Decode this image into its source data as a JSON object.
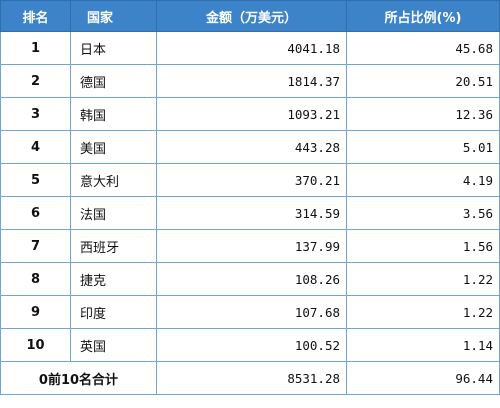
{
  "header": {
    "rank": "排名",
    "country": "国家",
    "amount": "金额（万美元）",
    "share": "所占比例(%)"
  },
  "rows": [
    {
      "rank": "1",
      "country": "日本",
      "amount": "4041.18",
      "share": "45.68"
    },
    {
      "rank": "2",
      "country": "德国",
      "amount": "1814.37",
      "share": "20.51"
    },
    {
      "rank": "3",
      "country": "韩国",
      "amount": "1093.21",
      "share": "12.36"
    },
    {
      "rank": "4",
      "country": "美国",
      "amount": "443.28",
      "share": "5.01"
    },
    {
      "rank": "5",
      "country": "意大利",
      "amount": "370.21",
      "share": "4.19"
    },
    {
      "rank": "6",
      "country": "法国",
      "amount": "314.59",
      "share": "3.56"
    },
    {
      "rank": "7",
      "country": "西班牙",
      "amount": "137.99",
      "share": "1.56"
    },
    {
      "rank": "8",
      "country": "捷克",
      "amount": "108.26",
      "share": "1.22"
    },
    {
      "rank": "9",
      "country": "印度",
      "amount": "107.68",
      "share": "1.22"
    },
    {
      "rank": "10",
      "country": "英国",
      "amount": "100.52",
      "share": "1.14"
    }
  ],
  "total": {
    "label": "0前10名合计",
    "amount": "8531.28",
    "share": "96.44"
  },
  "colors": {
    "header_bg": "#3c83c9",
    "border": "#6fa6d8"
  }
}
